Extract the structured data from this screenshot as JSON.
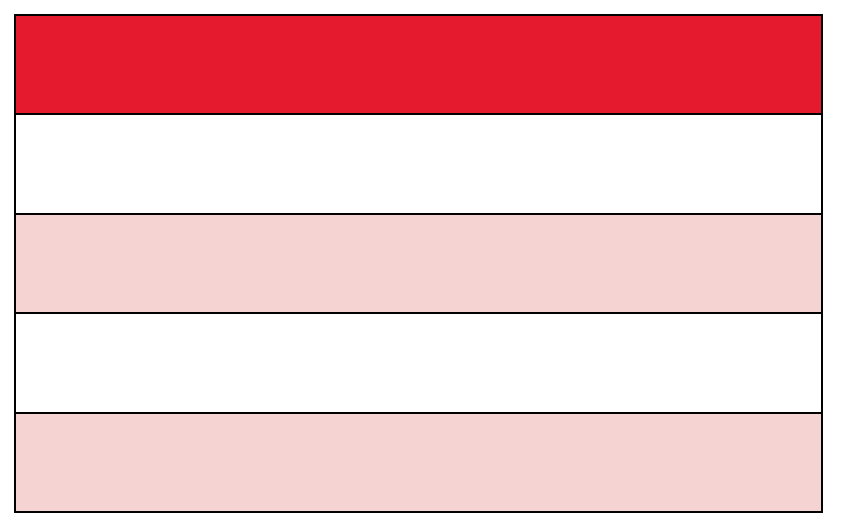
{
  "table": {
    "colors": {
      "header": "#E61A2F",
      "stripe": "#F5D3D3",
      "plain": "#FFFFFF",
      "border": "#000000"
    },
    "rows": [
      {
        "style": "header"
      },
      {
        "style": "plain"
      },
      {
        "style": "stripe"
      },
      {
        "style": "plain"
      },
      {
        "style": "stripe"
      }
    ]
  }
}
